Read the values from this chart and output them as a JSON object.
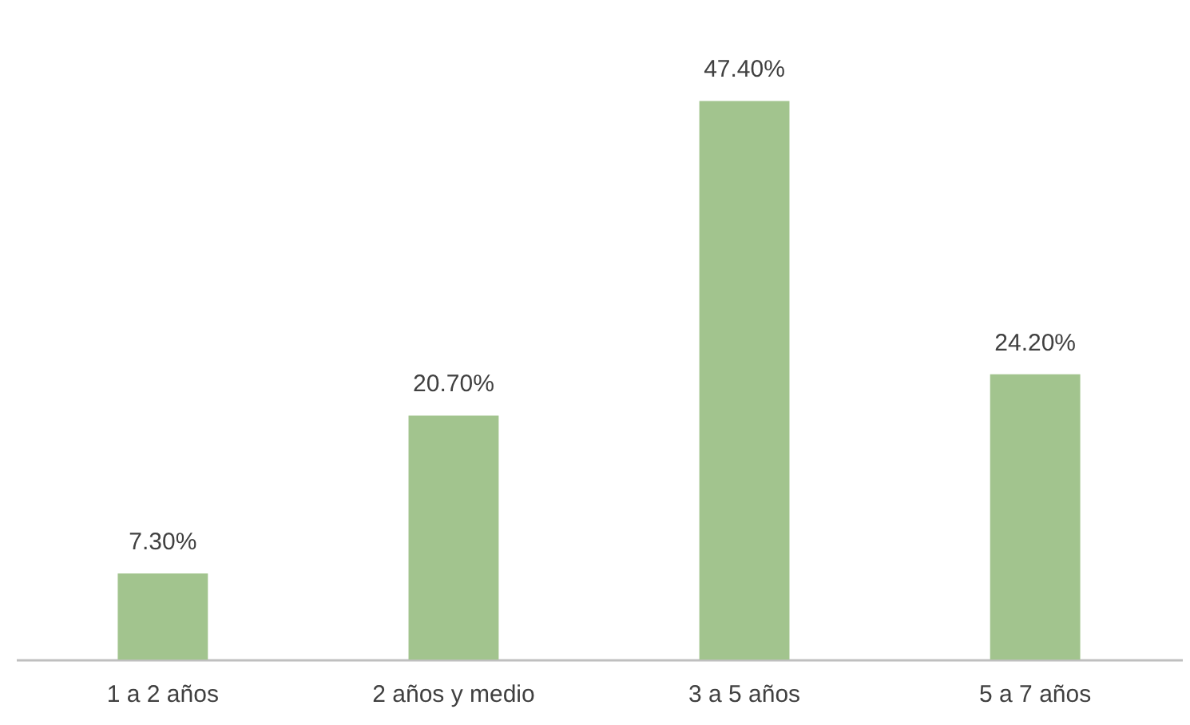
{
  "chart_data": {
    "type": "bar",
    "categories": [
      "1 a 2 años",
      "2 años y medio",
      "3 a 5 años",
      "5 a 7 años"
    ],
    "values": [
      7.3,
      20.7,
      47.4,
      24.2
    ],
    "value_labels": [
      "7.30%",
      "20.70%",
      "47.40%",
      "24.20%"
    ],
    "color": "#a2c48e",
    "grid": false
  }
}
